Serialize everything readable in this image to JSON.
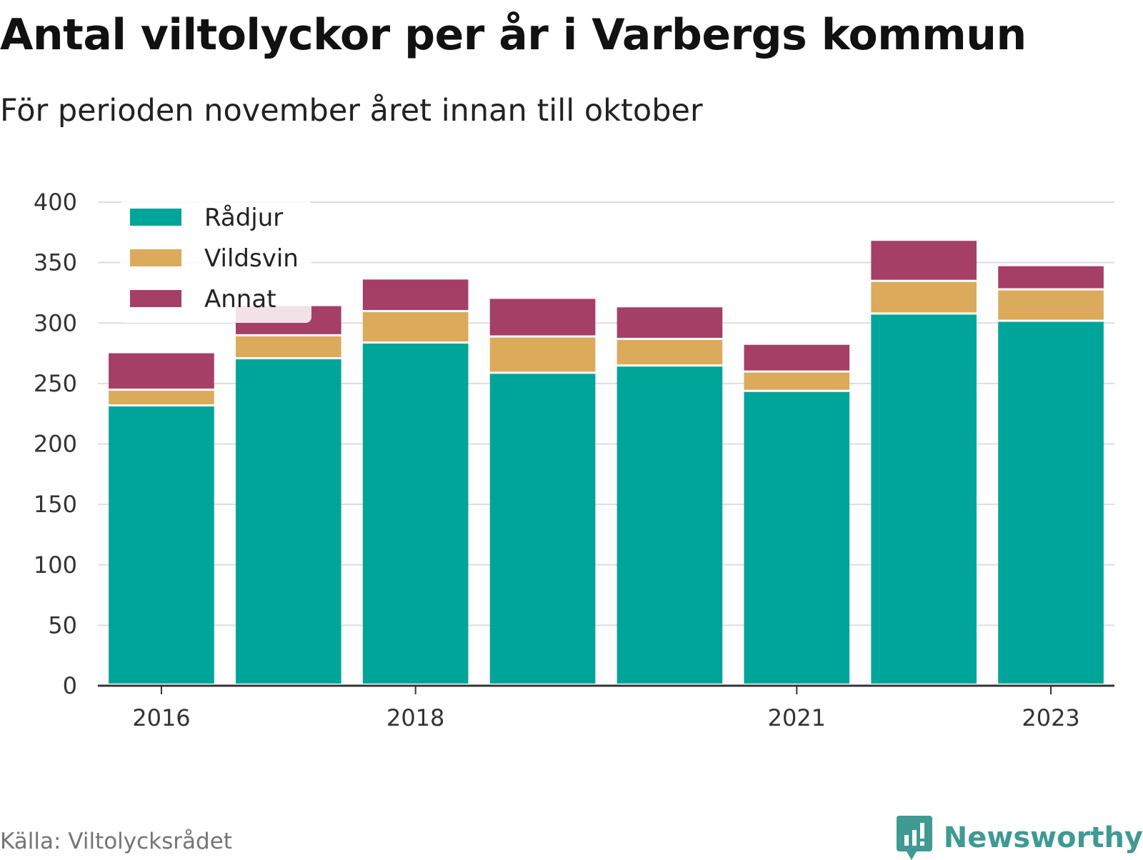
{
  "header": {
    "title": "Antal viltolyckor per år i Varbergs kommun",
    "subtitle": "För perioden november året innan till oktober"
  },
  "footer": {
    "source": "Källa: Viltolycksrådet",
    "brand": "Newsworthy",
    "brand_icon": "newsworthy-logo-icon",
    "brand_color": "#3e9a93"
  },
  "chart_data": {
    "type": "bar",
    "stacked": true,
    "categories": [
      "2016",
      "2017",
      "2018",
      "2019",
      "2020",
      "2021",
      "2022",
      "2023"
    ],
    "x_tick_labels": [
      "2016",
      "2018",
      "2021",
      "2023"
    ],
    "series": [
      {
        "name": "Rådjur",
        "color": "#00a59a",
        "values": [
          231,
          270,
          283,
          258,
          264,
          243,
          307,
          301
        ]
      },
      {
        "name": "Vildsvin",
        "color": "#dbab5b",
        "values": [
          13,
          19,
          26,
          30,
          22,
          16,
          27,
          26
        ]
      },
      {
        "name": "Annat",
        "color": "#a53f66",
        "values": [
          31,
          25,
          27,
          32,
          27,
          23,
          34,
          20
        ]
      }
    ],
    "ylim": [
      0,
      400
    ],
    "yticks": [
      0,
      50,
      100,
      150,
      200,
      250,
      300,
      350,
      400
    ],
    "xlabel": "",
    "ylabel": "",
    "grid": "horizontal",
    "legend_position": "top-left"
  }
}
